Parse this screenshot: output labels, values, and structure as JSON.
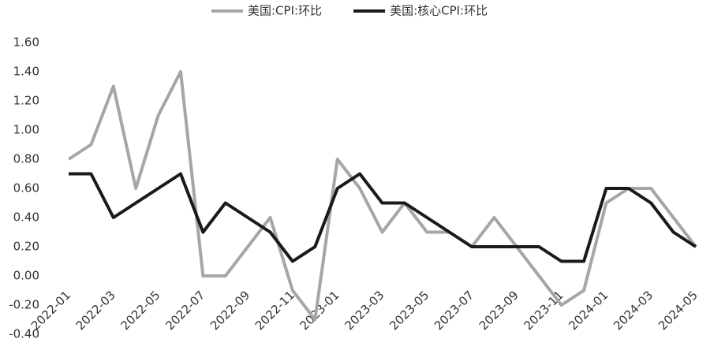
{
  "chart_data": {
    "type": "line",
    "categories": [
      "2022-01",
      null,
      "2022-03",
      null,
      "2022-05",
      null,
      "2022-07",
      null,
      "2022-09",
      null,
      "2022-11",
      null,
      "2023-01",
      null,
      "2023-03",
      null,
      "2023-05",
      null,
      "2023-07",
      null,
      "2023-09",
      null,
      "2023-11",
      null,
      "2024-01",
      null,
      "2024-03",
      null,
      "2024-05"
    ],
    "series": [
      {
        "name": "美国:CPI:环比",
        "color": "#a6a6a6",
        "values": [
          0.8,
          0.9,
          1.3,
          0.6,
          1.1,
          1.4,
          0.0,
          0.0,
          0.2,
          0.4,
          -0.1,
          -0.3,
          0.8,
          0.6,
          0.3,
          0.5,
          0.3,
          0.3,
          0.2,
          0.4,
          0.2,
          0.0,
          -0.2,
          -0.1,
          0.5,
          0.6,
          0.6,
          0.4,
          0.2
        ]
      },
      {
        "name": "美国:核心CPI:环比",
        "color": "#1a1a1a",
        "values": [
          0.7,
          0.7,
          0.4,
          0.5,
          0.6,
          0.7,
          0.3,
          0.5,
          0.4,
          0.3,
          0.1,
          0.2,
          0.6,
          0.7,
          0.5,
          0.5,
          0.4,
          0.3,
          0.2,
          0.2,
          0.2,
          0.2,
          0.1,
          0.1,
          0.6,
          0.6,
          0.5,
          0.3,
          0.2
        ]
      }
    ],
    "ylim": [
      -0.4,
      1.6
    ],
    "yticks": [
      {
        "value": -0.4,
        "label": "-0.40"
      },
      {
        "value": -0.2,
        "label": "-0.20"
      },
      {
        "value": 0,
        "label": "0.00"
      },
      {
        "value": 0.2,
        "label": "0.20"
      },
      {
        "value": 0.4,
        "label": "0.40"
      },
      {
        "value": 0.6,
        "label": "0.60"
      },
      {
        "value": 0.8,
        "label": "0.80"
      },
      {
        "value": 1.0,
        "label": "1.00"
      },
      {
        "value": 1.2,
        "label": "1.20"
      },
      {
        "value": 1.4,
        "label": "1.40"
      },
      {
        "value": 1.6,
        "label": "1.60"
      }
    ],
    "grid": false,
    "legend": "top"
  }
}
